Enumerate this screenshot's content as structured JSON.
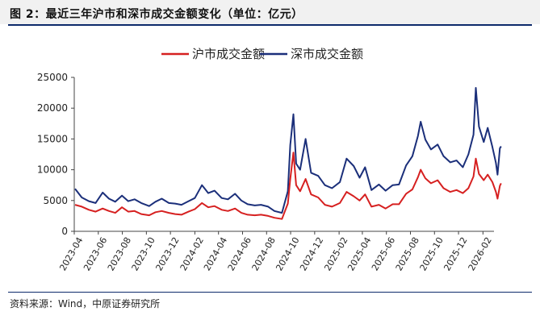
{
  "title": "图 2：最近三年沪市和深市成交金额变化（单位：亿元）",
  "source": "资料来源：Wind，中原证券研究所",
  "chart_data": {
    "type": "line",
    "ylim": [
      0,
      25000
    ],
    "yticks": [
      0,
      5000,
      10000,
      15000,
      20000,
      25000
    ],
    "xlim": [
      "2023-04",
      "2026-03"
    ],
    "xticks": [
      "2023-04",
      "2023-06",
      "2023-08",
      "2023-10",
      "2023-12",
      "2024-02",
      "2024-04",
      "2024-06",
      "2024-08",
      "2024-10",
      "2024-12",
      "2025-02",
      "2025-04",
      "2025-06",
      "2025-08",
      "2025-10",
      "2025-12",
      "2026-02"
    ],
    "legend_position": "top-center",
    "grid": false,
    "series": [
      {
        "name": "沪市成交金额",
        "color": "#d62020",
        "points": [
          [
            "2023-04-03",
            4300
          ],
          [
            "2023-04-20",
            4000
          ],
          [
            "2023-05-08",
            3500
          ],
          [
            "2023-05-25",
            3200
          ],
          [
            "2023-06-12",
            3700
          ],
          [
            "2023-06-28",
            3300
          ],
          [
            "2023-07-14",
            3000
          ],
          [
            "2023-07-31",
            3900
          ],
          [
            "2023-08-16",
            3200
          ],
          [
            "2023-09-01",
            3300
          ],
          [
            "2023-09-18",
            2800
          ],
          [
            "2023-10-08",
            2600
          ],
          [
            "2023-10-24",
            3100
          ],
          [
            "2023-11-09",
            3300
          ],
          [
            "2023-11-27",
            3000
          ],
          [
            "2023-12-13",
            2800
          ],
          [
            "2023-12-29",
            2700
          ],
          [
            "2024-01-16",
            3200
          ],
          [
            "2024-02-01",
            3600
          ],
          [
            "2024-02-19",
            4600
          ],
          [
            "2024-03-06",
            3900
          ],
          [
            "2024-03-22",
            4100
          ],
          [
            "2024-04-09",
            3500
          ],
          [
            "2024-04-25",
            3300
          ],
          [
            "2024-05-13",
            3700
          ],
          [
            "2024-05-29",
            3000
          ],
          [
            "2024-06-14",
            2700
          ],
          [
            "2024-07-02",
            2600
          ],
          [
            "2024-07-18",
            2700
          ],
          [
            "2024-08-05",
            2500
          ],
          [
            "2024-08-21",
            2200
          ],
          [
            "2024-09-09",
            2000
          ],
          [
            "2024-09-24",
            4500
          ],
          [
            "2024-09-30",
            8500
          ],
          [
            "2024-10-08",
            12800
          ],
          [
            "2024-10-15",
            7500
          ],
          [
            "2024-10-25",
            6500
          ],
          [
            "2024-11-08",
            8500
          ],
          [
            "2024-11-22",
            6000
          ],
          [
            "2024-12-10",
            5500
          ],
          [
            "2024-12-27",
            4300
          ],
          [
            "2025-01-14",
            4000
          ],
          [
            "2025-02-03",
            4600
          ],
          [
            "2025-02-20",
            6400
          ],
          [
            "2025-03-10",
            5700
          ],
          [
            "2025-03-25",
            5000
          ],
          [
            "2025-04-08",
            6000
          ],
          [
            "2025-04-24",
            4000
          ],
          [
            "2025-05-13",
            4300
          ],
          [
            "2025-05-30",
            3700
          ],
          [
            "2025-06-17",
            4400
          ],
          [
            "2025-07-03",
            4400
          ],
          [
            "2025-07-21",
            6100
          ],
          [
            "2025-08-06",
            6800
          ],
          [
            "2025-08-20",
            8800
          ],
          [
            "2025-08-27",
            10000
          ],
          [
            "2025-09-08",
            8600
          ],
          [
            "2025-09-22",
            7800
          ],
          [
            "2025-10-09",
            8300
          ],
          [
            "2025-10-24",
            7000
          ],
          [
            "2025-11-10",
            6400
          ],
          [
            "2025-11-26",
            6700
          ],
          [
            "2025-12-12",
            6200
          ],
          [
            "2025-12-26",
            7000
          ],
          [
            "2026-01-08",
            8900
          ],
          [
            "2026-01-14",
            11800
          ],
          [
            "2026-01-22",
            9300
          ],
          [
            "2026-02-03",
            8300
          ],
          [
            "2026-02-13",
            9200
          ],
          [
            "2026-02-25",
            8000
          ],
          [
            "2026-03-06",
            6400
          ],
          [
            "2026-03-10",
            5300
          ],
          [
            "2026-03-16",
            7400
          ],
          [
            "2026-03-19",
            7800
          ]
        ]
      },
      {
        "name": "深市成交金额",
        "color": "#1b2f7a",
        "points": [
          [
            "2023-04-03",
            6900
          ],
          [
            "2023-04-20",
            5500
          ],
          [
            "2023-05-08",
            4900
          ],
          [
            "2023-05-25",
            4600
          ],
          [
            "2023-06-12",
            6300
          ],
          [
            "2023-06-28",
            5300
          ],
          [
            "2023-07-14",
            4800
          ],
          [
            "2023-07-31",
            5800
          ],
          [
            "2023-08-16",
            4900
          ],
          [
            "2023-09-01",
            5200
          ],
          [
            "2023-09-18",
            4600
          ],
          [
            "2023-10-08",
            4100
          ],
          [
            "2023-10-24",
            4800
          ],
          [
            "2023-11-09",
            5300
          ],
          [
            "2023-11-27",
            4600
          ],
          [
            "2023-12-13",
            4500
          ],
          [
            "2023-12-29",
            4300
          ],
          [
            "2024-01-16",
            4900
          ],
          [
            "2024-02-01",
            5400
          ],
          [
            "2024-02-19",
            7500
          ],
          [
            "2024-03-06",
            6200
          ],
          [
            "2024-03-22",
            6600
          ],
          [
            "2024-04-09",
            5400
          ],
          [
            "2024-04-25",
            5200
          ],
          [
            "2024-05-13",
            6100
          ],
          [
            "2024-05-29",
            5000
          ],
          [
            "2024-06-14",
            4400
          ],
          [
            "2024-07-02",
            4200
          ],
          [
            "2024-07-18",
            4300
          ],
          [
            "2024-08-05",
            4000
          ],
          [
            "2024-08-21",
            3300
          ],
          [
            "2024-09-09",
            3000
          ],
          [
            "2024-09-24",
            6500
          ],
          [
            "2024-09-30",
            14000
          ],
          [
            "2024-10-08",
            19000
          ],
          [
            "2024-10-15",
            11000
          ],
          [
            "2024-10-25",
            10000
          ],
          [
            "2024-11-08",
            15000
          ],
          [
            "2024-11-22",
            9500
          ],
          [
            "2024-12-10",
            9000
          ],
          [
            "2024-12-27",
            7500
          ],
          [
            "2025-01-14",
            7000
          ],
          [
            "2025-02-03",
            8000
          ],
          [
            "2025-02-20",
            11800
          ],
          [
            "2025-03-10",
            10600
          ],
          [
            "2025-03-25",
            8700
          ],
          [
            "2025-04-08",
            10400
          ],
          [
            "2025-04-24",
            6700
          ],
          [
            "2025-05-13",
            7600
          ],
          [
            "2025-05-30",
            6600
          ],
          [
            "2025-06-17",
            7500
          ],
          [
            "2025-07-03",
            7600
          ],
          [
            "2025-07-21",
            10700
          ],
          [
            "2025-08-06",
            12200
          ],
          [
            "2025-08-20",
            15500
          ],
          [
            "2025-08-27",
            17800
          ],
          [
            "2025-09-08",
            14900
          ],
          [
            "2025-09-22",
            13300
          ],
          [
            "2025-10-09",
            14100
          ],
          [
            "2025-10-24",
            12200
          ],
          [
            "2025-11-10",
            11200
          ],
          [
            "2025-11-26",
            11500
          ],
          [
            "2025-12-12",
            10400
          ],
          [
            "2025-12-26",
            12500
          ],
          [
            "2026-01-08",
            15700
          ],
          [
            "2026-01-14",
            23300
          ],
          [
            "2026-01-22",
            17000
          ],
          [
            "2026-02-03",
            14500
          ],
          [
            "2026-02-13",
            16800
          ],
          [
            "2026-02-25",
            13700
          ],
          [
            "2026-03-06",
            11100
          ],
          [
            "2026-03-10",
            9200
          ],
          [
            "2026-03-16",
            13500
          ],
          [
            "2026-03-19",
            13800
          ]
        ]
      }
    ]
  }
}
